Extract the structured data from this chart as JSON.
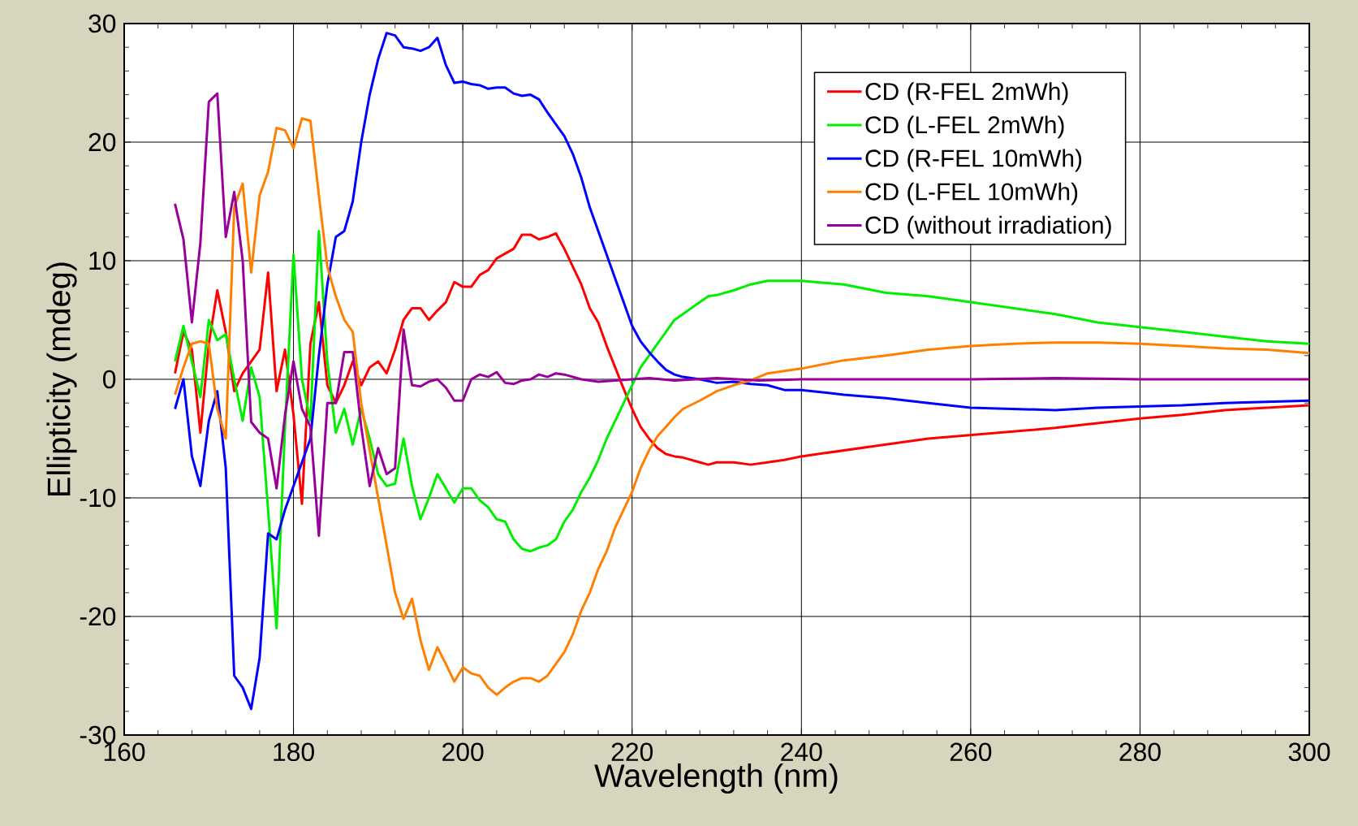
{
  "chart_data": {
    "type": "line",
    "xlabel": "Wavelength (nm)",
    "ylabel": "Ellipticity (mdeg)",
    "xlim": [
      160,
      300
    ],
    "ylim": [
      -30,
      30
    ],
    "xticks": [
      160,
      180,
      200,
      220,
      240,
      260,
      280,
      300
    ],
    "yticks": [
      -30,
      -20,
      -10,
      0,
      10,
      20,
      30
    ],
    "grid": true,
    "legend": "top right",
    "line_style": "solid",
    "series": [
      {
        "name": "CD (R-FEL 2mWh)",
        "color": "#ff0000",
        "x": [
          166,
          167,
          168,
          169,
          170,
          171,
          172,
          173,
          174,
          175,
          176,
          177,
          178,
          179,
          180,
          181,
          182,
          183,
          184,
          185,
          186,
          187,
          188,
          189,
          190,
          191,
          192,
          193,
          194,
          195,
          196,
          197,
          198,
          199,
          200,
          201,
          202,
          203,
          204,
          205,
          206,
          207,
          208,
          209,
          210,
          211,
          212,
          213,
          214,
          215,
          216,
          217,
          218,
          219,
          220,
          221,
          222,
          223,
          224,
          225,
          226,
          228,
          229,
          230,
          232,
          234,
          236,
          238,
          240,
          245,
          250,
          255,
          260,
          265,
          270,
          275,
          280,
          285,
          290,
          295,
          300
        ],
        "values": [
          0.5,
          4,
          2.5,
          -4.5,
          3,
          7.5,
          4,
          -1,
          0.5,
          1.5,
          2.5,
          9,
          -1,
          2.5,
          -3,
          -10.5,
          3,
          6.5,
          -0.5,
          -2,
          -0.5,
          1.5,
          -0.5,
          1,
          1.5,
          0.5,
          2.5,
          5,
          6,
          6,
          5,
          5.8,
          6.5,
          8.2,
          7.8,
          7.8,
          8.8,
          9.2,
          10.2,
          10.6,
          11,
          12.2,
          12.2,
          11.8,
          12,
          12.3,
          11,
          9.5,
          8,
          6,
          4.8,
          2.8,
          1,
          -0.8,
          -2.5,
          -4,
          -5,
          -5.8,
          -6.3,
          -6.5,
          -6.6,
          -7,
          -7.2,
          -7,
          -7,
          -7.2,
          -7,
          -6.8,
          -6.5,
          -6,
          -5.5,
          -5,
          -4.7,
          -4.4,
          -4.1,
          -3.7,
          -3.3,
          -3,
          -2.6,
          -2.4,
          -2.2
        ]
      },
      {
        "name": "CD (L-FEL 2mWh)",
        "color": "#00ee00",
        "x": [
          166,
          167,
          168,
          169,
          170,
          171,
          172,
          173,
          174,
          175,
          176,
          177,
          178,
          179,
          180,
          181,
          182,
          183,
          184,
          185,
          186,
          187,
          188,
          189,
          190,
          191,
          192,
          193,
          194,
          195,
          196,
          197,
          198,
          199,
          200,
          201,
          202,
          203,
          204,
          205,
          206,
          207,
          208,
          209,
          210,
          211,
          212,
          213,
          214,
          215,
          216,
          217,
          218,
          219,
          220,
          221,
          222,
          223,
          224,
          225,
          226,
          227,
          228,
          229,
          230,
          232,
          234,
          236,
          238,
          240,
          245,
          250,
          255,
          260,
          265,
          270,
          275,
          280,
          285,
          290,
          295,
          300
        ],
        "values": [
          1.5,
          4.5,
          1.5,
          -1.5,
          5,
          3.3,
          3.8,
          0,
          -3.5,
          1,
          -1.5,
          -11,
          -21,
          -4,
          10.5,
          0,
          -3.5,
          12.5,
          1.5,
          -4.5,
          -2.5,
          -5.5,
          -2.5,
          -5,
          -8,
          -9,
          -8.8,
          -5,
          -9,
          -11.8,
          -10,
          -8,
          -9.2,
          -10.4,
          -9.2,
          -9.2,
          -10.2,
          -10.8,
          -11.8,
          -12,
          -13.5,
          -14.3,
          -14.5,
          -14.2,
          -14,
          -13.5,
          -12,
          -11,
          -9.5,
          -8.3,
          -6.8,
          -5,
          -3.5,
          -2,
          -0.5,
          1,
          2,
          3,
          4,
          5,
          5.5,
          6,
          6.5,
          7,
          7.1,
          7.5,
          8,
          8.3,
          8.3,
          8.3,
          8,
          7.3,
          7,
          6.5,
          6,
          5.5,
          4.8,
          4.4,
          4,
          3.6,
          3.2,
          3
        ]
      },
      {
        "name": "CD (R-FEL 10mWh)",
        "color": "#0000ff",
        "x": [
          166,
          167,
          168,
          169,
          170,
          171,
          172,
          173,
          174,
          175,
          176,
          177,
          178,
          179,
          180,
          181,
          182,
          183,
          184,
          185,
          186,
          187,
          188,
          189,
          190,
          191,
          192,
          193,
          194,
          195,
          196,
          197,
          198,
          199,
          200,
          201,
          202,
          203,
          204,
          205,
          206,
          207,
          208,
          209,
          210,
          211,
          212,
          213,
          214,
          215,
          216,
          217,
          218,
          219,
          220,
          221,
          222,
          223,
          224,
          225,
          226,
          228,
          230,
          232,
          234,
          236,
          238,
          240,
          245,
          250,
          255,
          260,
          265,
          270,
          275,
          280,
          285,
          290,
          295,
          300
        ],
        "values": [
          -2.5,
          0,
          -6.5,
          -9,
          -3.5,
          -1,
          -7.5,
          -25,
          -26,
          -27.8,
          -23.5,
          -13,
          -13.5,
          -11,
          -9,
          -7,
          -5,
          2,
          8,
          12,
          12.5,
          15,
          20,
          24,
          27,
          29.2,
          29,
          28,
          27.9,
          27.7,
          28,
          28.8,
          26.5,
          25,
          25.1,
          24.9,
          24.8,
          24.5,
          24.6,
          24.6,
          24.1,
          23.9,
          24,
          23.6,
          22.5,
          21.5,
          20.5,
          19,
          17,
          14.5,
          12.5,
          10.5,
          8.5,
          6.5,
          4.5,
          3.2,
          2.3,
          1.5,
          0.8,
          0.4,
          0.2,
          0,
          -0.3,
          -0.2,
          -0.4,
          -0.5,
          -0.9,
          -0.9,
          -1.3,
          -1.6,
          -2,
          -2.4,
          -2.5,
          -2.6,
          -2.4,
          -2.3,
          -2.2,
          -2,
          -1.9,
          -1.8
        ]
      },
      {
        "name": "CD (L-FEL 10mWh)",
        "color": "#ff8000",
        "x": [
          166,
          167,
          168,
          169,
          170,
          171,
          172,
          173,
          174,
          175,
          176,
          177,
          178,
          179,
          180,
          181,
          182,
          183,
          184,
          185,
          186,
          187,
          188,
          189,
          190,
          191,
          192,
          193,
          194,
          195,
          196,
          197,
          198,
          199,
          200,
          201,
          202,
          203,
          204,
          205,
          206,
          207,
          208,
          209,
          210,
          211,
          212,
          213,
          214,
          215,
          216,
          217,
          218,
          219,
          220,
          221,
          222,
          223,
          224,
          225,
          226,
          228,
          230,
          232,
          234,
          236,
          238,
          240,
          245,
          250,
          255,
          260,
          265,
          270,
          275,
          280,
          285,
          290,
          295,
          300
        ],
        "values": [
          -1.3,
          1,
          3,
          3.2,
          3,
          -2.5,
          -5,
          14.5,
          16.5,
          9,
          15.5,
          17.5,
          21.2,
          21,
          19.5,
          22,
          21.8,
          15.5,
          9.5,
          7,
          5,
          4,
          -2,
          -6,
          -10,
          -14,
          -18,
          -20.2,
          -18.5,
          -22,
          -24.5,
          -22.6,
          -24,
          -25.5,
          -24.3,
          -24.8,
          -25,
          -26,
          -26.6,
          -26,
          -25.5,
          -25.2,
          -25.2,
          -25.5,
          -25,
          -24,
          -23,
          -21.5,
          -19.5,
          -18,
          -16,
          -14.5,
          -12.5,
          -11,
          -9.5,
          -7.5,
          -6,
          -4.8,
          -4,
          -3.2,
          -2.5,
          -1.8,
          -1,
          -0.5,
          -0.1,
          0.5,
          0.7,
          0.9,
          1.6,
          2,
          2.5,
          2.8,
          3,
          3.1,
          3.1,
          3,
          2.8,
          2.6,
          2.5,
          2.2
        ]
      },
      {
        "name": "CD (without irradiation)",
        "color": "#990099",
        "x": [
          166,
          167,
          168,
          169,
          170,
          171,
          172,
          173,
          174,
          175,
          176,
          177,
          178,
          179,
          180,
          181,
          182,
          183,
          184,
          185,
          186,
          187,
          188,
          189,
          190,
          191,
          192,
          193,
          194,
          195,
          196,
          197,
          198,
          199,
          200,
          201,
          202,
          203,
          204,
          205,
          206,
          207,
          208,
          209,
          210,
          211,
          212,
          214,
          216,
          218,
          220,
          222,
          225,
          230,
          235,
          240,
          250,
          260,
          270,
          280,
          290,
          300
        ],
        "values": [
          14.8,
          11.8,
          4.8,
          11.5,
          23.4,
          24.1,
          12,
          15.8,
          10,
          -3.6,
          -4.5,
          -5,
          -9.2,
          -3,
          1.5,
          -2.5,
          -4,
          -13.2,
          -2,
          -2,
          2.3,
          2.3,
          -4,
          -9,
          -5.8,
          -8,
          -7.5,
          4.2,
          -0.5,
          -0.6,
          -0.2,
          0,
          -0.7,
          -1.8,
          -1.8,
          0,
          0.4,
          0.2,
          0.6,
          -0.3,
          -0.4,
          -0.1,
          0,
          0.4,
          0.2,
          0.5,
          0.4,
          0,
          -0.2,
          -0.1,
          0,
          0.1,
          -0.1,
          0.1,
          -0.1,
          0,
          0,
          0,
          0.1,
          0,
          0,
          0
        ]
      }
    ]
  }
}
